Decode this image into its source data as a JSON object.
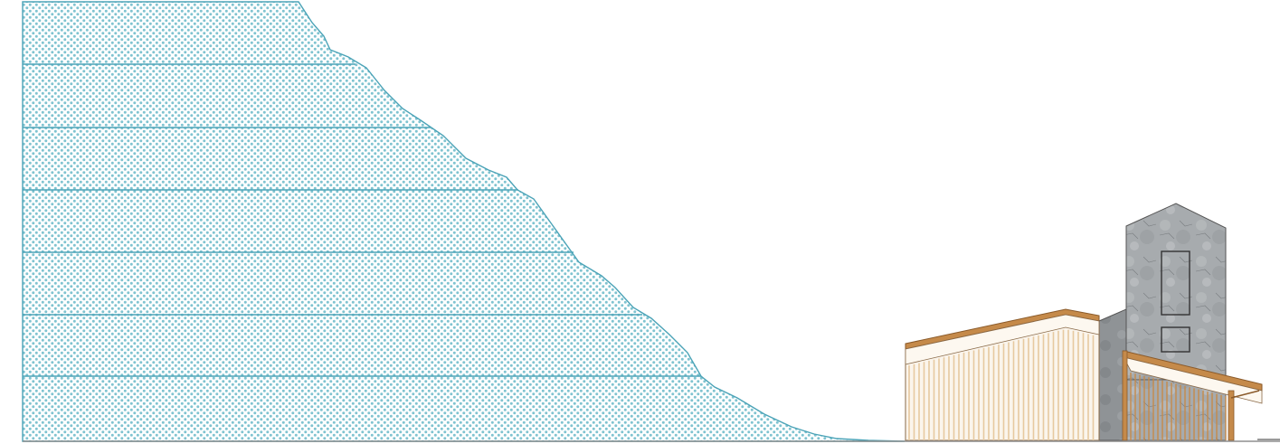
{
  "drawing": {
    "type": "architectural-section-elevation",
    "colors": {
      "terrain_fill_dots": "#7fc3d0",
      "terrain_outline": "#4ba3b7",
      "contour_lines": "#4ba3b7",
      "ground_line": "#8f8f8f",
      "timber": "#c58a4a",
      "timber_light": "#e7c9a0",
      "timber_bg": "#fbf5ec",
      "stone": "#a5a9ac",
      "stone_dark": "#6f7376",
      "stone_light": "#c7cacc",
      "outline": "#333333"
    },
    "elements": [
      "terrain-slope",
      "contour-lines",
      "timber-pavilion",
      "stone-tower",
      "stone-wall",
      "timber-canopy",
      "ground-line"
    ]
  }
}
